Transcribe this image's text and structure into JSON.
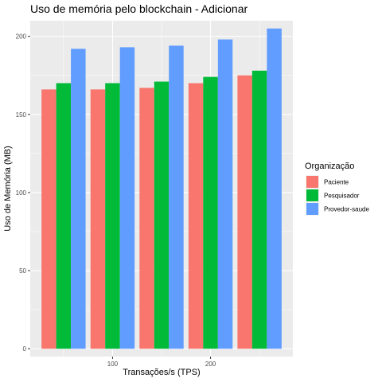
{
  "chart_data": {
    "type": "bar",
    "title": "Uso de memória pelo blockchain - Adicionar",
    "xlabel": "Transações/s (TPS)",
    "ylabel": "Uso de Memória (MB)",
    "x": [
      50,
      100,
      150,
      200,
      250
    ],
    "x_tick_labels": [
      "100",
      "200"
    ],
    "x_ticks": [
      100,
      200
    ],
    "xlim": [
      16,
      284
    ],
    "ylim": [
      -5,
      210
    ],
    "y_ticks": [
      0,
      50,
      100,
      150,
      200
    ],
    "y_tick_labels": [
      "0",
      "50",
      "100",
      "150",
      "200"
    ],
    "grid": true,
    "legend_position": "right",
    "legend_title": "Organização",
    "series": [
      {
        "name": "Paciente",
        "color": "#F8766D",
        "values": [
          166,
          166,
          167,
          170,
          175
        ]
      },
      {
        "name": "Pesquisador",
        "color": "#00BA38",
        "values": [
          170,
          170,
          171,
          174,
          178
        ]
      },
      {
        "name": "Provedor-saude",
        "color": "#619CFF",
        "values": [
          192,
          193,
          194,
          198,
          205
        ]
      }
    ]
  }
}
